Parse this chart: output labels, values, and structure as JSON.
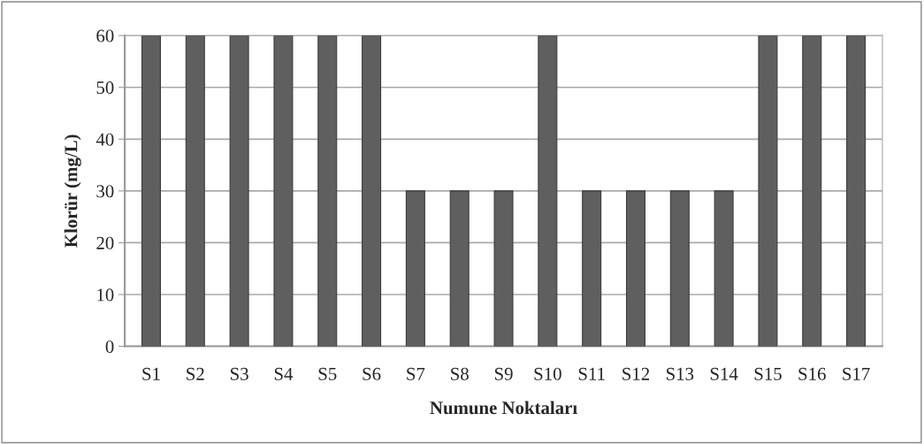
{
  "chart_data": {
    "type": "bar",
    "xlabel": "Numune Noktaları",
    "ylabel": "Klorür (mg/L)",
    "categories": [
      "S1",
      "S2",
      "S3",
      "S4",
      "S5",
      "S6",
      "S7",
      "S8",
      "S9",
      "S10",
      "S11",
      "S12",
      "S13",
      "S14",
      "S15",
      "S16",
      "S17"
    ],
    "values": [
      60,
      60,
      60,
      60,
      60,
      60,
      30,
      30,
      30,
      60,
      30,
      30,
      30,
      30,
      60,
      60,
      60
    ],
    "color": "#5f5f5f",
    "ylim": [
      0,
      60
    ],
    "yticks": [
      0,
      10,
      20,
      30,
      40,
      50,
      60
    ],
    "grid": "y",
    "legend": false
  }
}
